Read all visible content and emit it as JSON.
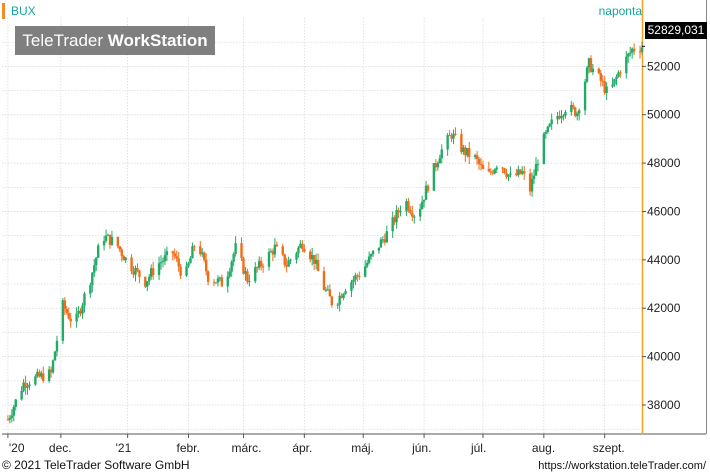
{
  "header": {
    "symbol": "BUX",
    "period": "naponta",
    "watermark_part1": "TeleTrader",
    "watermark_part2": "WorkStation",
    "last_price": "52829,031"
  },
  "footer": {
    "copyright": "© 2021  TeleTrader Software GmbH",
    "url": "https://workstation.teleTrader.com/"
  },
  "colors": {
    "up": "#22aa66",
    "down": "#ef6c1a",
    "grid": "#cfd6d9",
    "axis": "#f2a21e",
    "accent": "#1aa39a"
  },
  "chart_data": {
    "type": "candlestick",
    "title": "",
    "xlabel": "",
    "ylabel": "",
    "ylim": [
      36800,
      54000
    ],
    "y_ticks": [
      38000,
      40000,
      42000,
      44000,
      46000,
      48000,
      50000,
      52000
    ],
    "y_tick_labels": [
      "38000",
      "40000",
      "42000",
      "44000",
      "46000",
      "48000",
      "50000",
      "52000"
    ],
    "x_ticks": [
      {
        "label": "'20",
        "day": 0
      },
      {
        "label": "dec.",
        "day": 27
      },
      {
        "label": "'21",
        "day": 61
      },
      {
        "label": "febr.",
        "day": 92
      },
      {
        "label": "márc.",
        "day": 120
      },
      {
        "label": "ápr.",
        "day": 151
      },
      {
        "label": "máj.",
        "day": 181
      },
      {
        "label": "jún.",
        "day": 212
      },
      {
        "label": "júl.",
        "day": 242
      },
      {
        "label": "aug.",
        "day": 273
      },
      {
        "label": "szept.",
        "day": 304
      }
    ],
    "x_range_days": [
      -3,
      323
    ],
    "anchors": [
      [
        0,
        37400
      ],
      [
        8,
        38900
      ],
      [
        14,
        39100
      ],
      [
        22,
        39300
      ],
      [
        28,
        42100
      ],
      [
        34,
        41300
      ],
      [
        42,
        43200
      ],
      [
        48,
        45000
      ],
      [
        55,
        44700
      ],
      [
        61,
        43900
      ],
      [
        70,
        43100
      ],
      [
        76,
        43800
      ],
      [
        84,
        44300
      ],
      [
        90,
        43200
      ],
      [
        96,
        44900
      ],
      [
        102,
        43300
      ],
      [
        110,
        43000
      ],
      [
        116,
        44500
      ],
      [
        122,
        43200
      ],
      [
        130,
        43900
      ],
      [
        136,
        44500
      ],
      [
        142,
        43800
      ],
      [
        150,
        44700
      ],
      [
        156,
        44000
      ],
      [
        160,
        43000
      ],
      [
        166,
        42100
      ],
      [
        172,
        42900
      ],
      [
        180,
        43500
      ],
      [
        188,
        44500
      ],
      [
        194,
        45200
      ],
      [
        202,
        46500
      ],
      [
        208,
        45800
      ],
      [
        214,
        47100
      ],
      [
        220,
        48400
      ],
      [
        226,
        49200
      ],
      [
        232,
        48500
      ],
      [
        238,
        48200
      ],
      [
        244,
        47400
      ],
      [
        250,
        48100
      ],
      [
        256,
        47400
      ],
      [
        262,
        47600
      ],
      [
        266,
        46900
      ],
      [
        272,
        48800
      ],
      [
        278,
        49800
      ],
      [
        284,
        50300
      ],
      [
        290,
        50100
      ],
      [
        296,
        52100
      ],
      [
        302,
        51400
      ],
      [
        306,
        50800
      ],
      [
        312,
        51900
      ],
      [
        318,
        52700
      ],
      [
        323,
        52829
      ]
    ]
  }
}
